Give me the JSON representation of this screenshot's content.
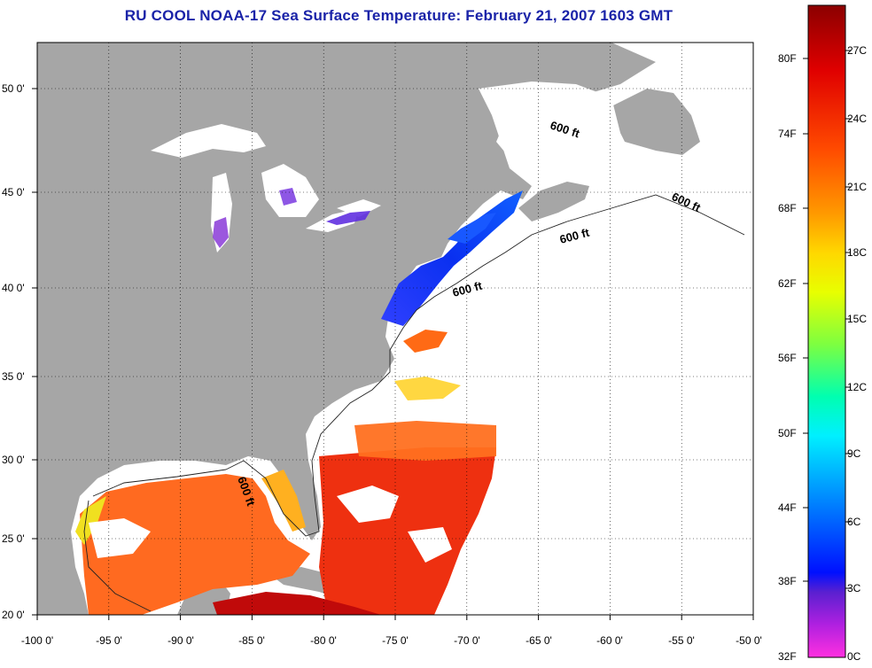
{
  "title": "RU COOL  NOAA-17  Sea Surface Temperature:  February 21, 2007 1603 GMT",
  "colors": {
    "land": "#a6a6a6",
    "water_no_data": "#ffffff",
    "title": "#1a23a8",
    "grid": "#000000"
  },
  "lon_ticks": [
    "-100 0'",
    "-95 0'",
    "-90 0'",
    "-85 0'",
    "-80 0'",
    "-75 0'",
    "-70 0'",
    "-65 0'",
    "-60 0'",
    "-55 0'",
    "-50 0'"
  ],
  "lat_ticks": [
    "20 0'",
    "25 0'",
    "30 0'",
    "35 0'",
    "40 0'",
    "45 0'",
    "50 0'"
  ],
  "isobath_labels": [
    "600 ft",
    "600 ft",
    "600 ft",
    "600 ft",
    "600 ft"
  ],
  "colorbar": {
    "fahrenheit": [
      "80F",
      "74F",
      "68F",
      "62F",
      "56F",
      "50F",
      "44F",
      "38F",
      "32F"
    ],
    "celsius": [
      "27C",
      "24C",
      "21C",
      "18C",
      "15C",
      "12C",
      "9C",
      "6C",
      "3C",
      "0C"
    ],
    "stops": [
      "#8b0000",
      "#e00000",
      "#ff4a00",
      "#ff9a00",
      "#ffd800",
      "#e8ff00",
      "#7dff40",
      "#00ffb0",
      "#00f0ff",
      "#0090ff",
      "#0010ff",
      "#5a20d0",
      "#b020e0",
      "#ff30e0"
    ]
  }
}
